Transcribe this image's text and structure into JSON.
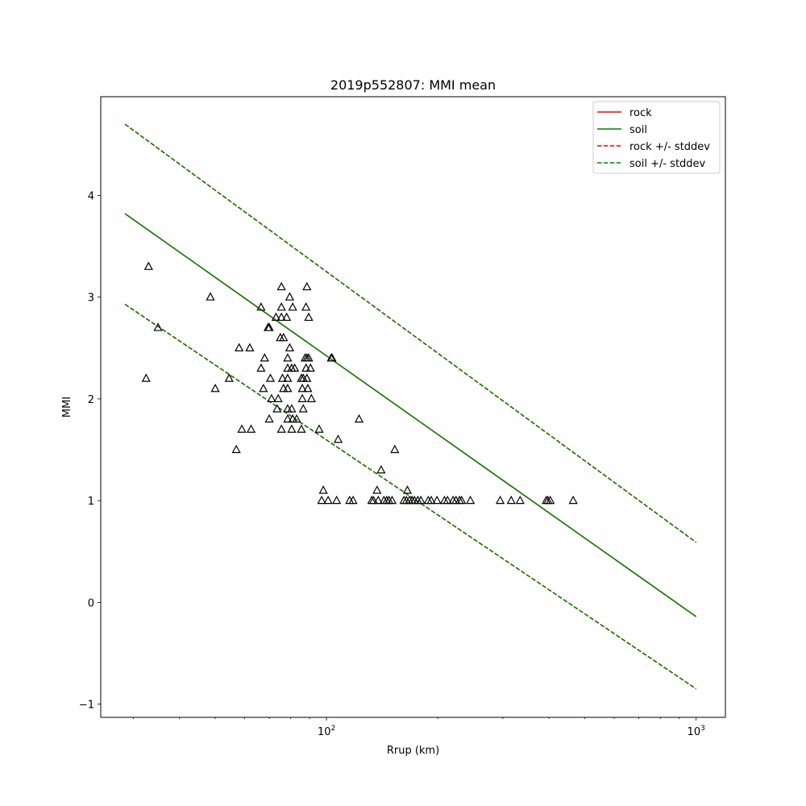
{
  "chart_data": {
    "type": "scatter",
    "title": "2019p552807: MMI mean",
    "xlabel": "Rrup (km)",
    "ylabel": "MMI",
    "xscale": "log",
    "xlim": [
      24.5,
      1200
    ],
    "ylim": [
      -1.13,
      4.97
    ],
    "grid": false,
    "legend_position": "top-right",
    "x_ticks": [
      {
        "value": 100,
        "base": "10",
        "exp": "2"
      },
      {
        "value": 1000,
        "base": "10",
        "exp": "3"
      }
    ],
    "y_ticks": [
      -1,
      0,
      1,
      2,
      3,
      4
    ],
    "lines": [
      {
        "name": "rock",
        "style": "solid",
        "color": "#ff0000",
        "x": [
          28.5,
          1000
        ],
        "y": [
          3.82,
          -0.14
        ]
      },
      {
        "name": "soil",
        "style": "solid",
        "color": "#008000",
        "x": [
          28.5,
          1000
        ],
        "y": [
          3.82,
          -0.14
        ]
      },
      {
        "name": "rock +/- stddev",
        "style": "dashed",
        "color": "#ff0000",
        "x": [
          28.5,
          1000
        ],
        "y": [
          4.7,
          0.59
        ]
      },
      {
        "name": "rock +/- stddev",
        "style": "dashed",
        "color": "#ff0000",
        "x": [
          28.5,
          1000
        ],
        "y": [
          2.93,
          -0.85
        ]
      },
      {
        "name": "soil +/- stddev",
        "style": "dashed",
        "color": "#008000",
        "x": [
          28.5,
          1000
        ],
        "y": [
          4.7,
          0.59
        ]
      },
      {
        "name": "soil +/- stddev",
        "style": "dashed",
        "color": "#008000",
        "x": [
          28.5,
          1000
        ],
        "y": [
          2.93,
          -0.85
        ]
      }
    ],
    "legend": [
      {
        "label": "rock",
        "color": "#ff0000",
        "style": "solid"
      },
      {
        "label": "soil",
        "color": "#008000",
        "style": "solid"
      },
      {
        "label": "rock +/- stddev",
        "color": "#ff0000",
        "style": "dashed"
      },
      {
        "label": "soil +/- stddev",
        "color": "#008000",
        "style": "dashed"
      }
    ],
    "points": [
      [
        33,
        3.3
      ],
      [
        32.5,
        2.2
      ],
      [
        35,
        2.7
      ],
      [
        48.5,
        3.0
      ],
      [
        50,
        2.1
      ],
      [
        54.5,
        2.2
      ],
      [
        57,
        1.5
      ],
      [
        58,
        2.5
      ],
      [
        59,
        1.7
      ],
      [
        62,
        2.5
      ],
      [
        62.5,
        1.7
      ],
      [
        66.5,
        2.9
      ],
      [
        66.5,
        2.3
      ],
      [
        67.5,
        2.1
      ],
      [
        68,
        2.4
      ],
      [
        69.5,
        2.7
      ],
      [
        70,
        2.7
      ],
      [
        70.5,
        2.2
      ],
      [
        70,
        1.8
      ],
      [
        71,
        2.0
      ],
      [
        73,
        2.8
      ],
      [
        73.5,
        1.9
      ],
      [
        74,
        2.0
      ],
      [
        75.5,
        3.1
      ],
      [
        75.5,
        2.9
      ],
      [
        75,
        2.6
      ],
      [
        76,
        2.2
      ],
      [
        75.5,
        2.8
      ],
      [
        76.5,
        2.6
      ],
      [
        76.5,
        2.1
      ],
      [
        75.5,
        1.7
      ],
      [
        78,
        2.8
      ],
      [
        78.5,
        2.4
      ],
      [
        78.5,
        2.3
      ],
      [
        78.5,
        2.2
      ],
      [
        78.5,
        2.1
      ],
      [
        78.5,
        1.9
      ],
      [
        78.5,
        1.8
      ],
      [
        79.5,
        3.0
      ],
      [
        79.5,
        2.5
      ],
      [
        80.5,
        2.3
      ],
      [
        81,
        2.9
      ],
      [
        80.5,
        1.9
      ],
      [
        81,
        1.8
      ],
      [
        80.5,
        1.7
      ],
      [
        82,
        2.3
      ],
      [
        83,
        1.8
      ],
      [
        85.5,
        1.7
      ],
      [
        85.5,
        2.2
      ],
      [
        86.5,
        2.2
      ],
      [
        86,
        2.1
      ],
      [
        86,
        2.0
      ],
      [
        86.5,
        1.9
      ],
      [
        87.5,
        2.4
      ],
      [
        88,
        2.3
      ],
      [
        88,
        2.9
      ],
      [
        88.5,
        2.4
      ],
      [
        88.5,
        2.2
      ],
      [
        88.5,
        3.1
      ],
      [
        89,
        2.1
      ],
      [
        89.5,
        2.4
      ],
      [
        89.5,
        2.8
      ],
      [
        90.5,
        2.3
      ],
      [
        91,
        2.0
      ],
      [
        95.5,
        1.7
      ],
      [
        97,
        1.0
      ],
      [
        98,
        1.1
      ],
      [
        101,
        1.0
      ],
      [
        103,
        2.4
      ],
      [
        103.5,
        2.4
      ],
      [
        106.5,
        1.0
      ],
      [
        107.5,
        1.6
      ],
      [
        115.5,
        1.0
      ],
      [
        118,
        1.0
      ],
      [
        122.5,
        1.8
      ],
      [
        132.5,
        1.0
      ],
      [
        134,
        1.0
      ],
      [
        137,
        1.1
      ],
      [
        138,
        1.0
      ],
      [
        140.5,
        1.3
      ],
      [
        143,
        1.0
      ],
      [
        145.5,
        1.0
      ],
      [
        147.5,
        1.0
      ],
      [
        150.5,
        1.0
      ],
      [
        153,
        1.5
      ],
      [
        162,
        1.0
      ],
      [
        164.5,
        1.0
      ],
      [
        165.5,
        1.1
      ],
      [
        167.5,
        1.0
      ],
      [
        170.5,
        1.0
      ],
      [
        173,
        1.0
      ],
      [
        176.5,
        1.0
      ],
      [
        180,
        1.0
      ],
      [
        188.5,
        1.0
      ],
      [
        192,
        1.0
      ],
      [
        199,
        1.0
      ],
      [
        208.5,
        1.0
      ],
      [
        212.5,
        1.0
      ],
      [
        220,
        1.0
      ],
      [
        224,
        1.0
      ],
      [
        229,
        1.0
      ],
      [
        232,
        1.0
      ],
      [
        245,
        1.0
      ],
      [
        295,
        1.0
      ],
      [
        316,
        1.0
      ],
      [
        334,
        1.0
      ],
      [
        393,
        1.0
      ],
      [
        397,
        1.0
      ],
      [
        403,
        1.0
      ],
      [
        465,
        1.0
      ]
    ]
  }
}
